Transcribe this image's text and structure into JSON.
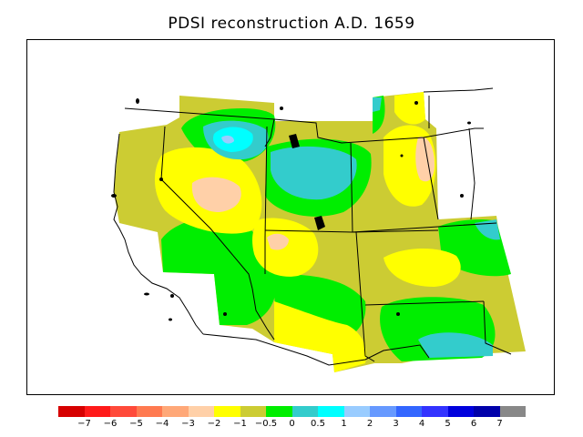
{
  "title": "PDSI reconstruction A.D. 1659",
  "legend": {
    "colors": [
      "#d60000",
      "#ff1a1a",
      "#ff4a3a",
      "#ff7a50",
      "#ffa878",
      "#ffd0a8",
      "#ffff00",
      "#cccc33",
      "#00ee00",
      "#33cccc",
      "#00ffff",
      "#99ccff",
      "#6699ff",
      "#3366ff",
      "#3333ff",
      "#0000dd",
      "#0000aa",
      "#888888"
    ],
    "labels": [
      "−7",
      "−6",
      "−5",
      "−4",
      "−3",
      "−2",
      "−1",
      "−0.5",
      "0",
      "0.5",
      "1",
      "2",
      "3",
      "4",
      "5",
      "6",
      "7"
    ]
  },
  "map": {
    "land_fill": "#cccc33",
    "lake_color": "#000000",
    "border_color": "#000000"
  }
}
